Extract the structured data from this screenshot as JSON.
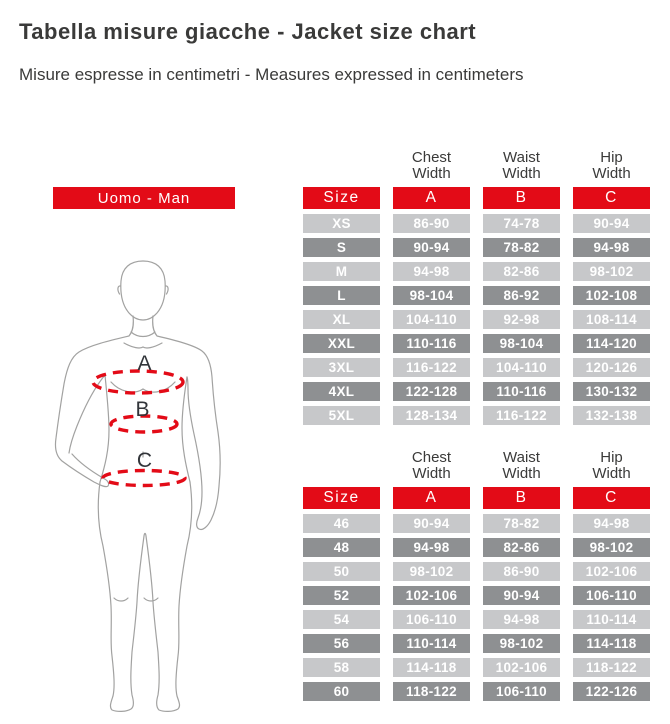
{
  "page": {
    "title": "Tabella misure giacche - Jacket size chart",
    "subtitle": "Misure espresse in centimetri - Measures expressed in centimeters"
  },
  "banner": {
    "label": "Uomo - Man"
  },
  "figure": {
    "labels": [
      "A",
      "B",
      "C"
    ]
  },
  "colors": {
    "accent_red": "#e30b17",
    "row_light": "#c7c8ca",
    "row_dark": "#8e9092",
    "text_dark": "#3a3a39",
    "figure_outline": "#a2a2a1"
  },
  "tables": [
    {
      "name": "international-sizes",
      "columns": [
        {
          "top": "Chest",
          "bottom": "Width"
        },
        {
          "top": "Waist",
          "bottom": "Width"
        },
        {
          "top": "Hip",
          "bottom": "Width"
        }
      ],
      "header": {
        "size": "Size",
        "a": "A",
        "b": "B",
        "c": "C"
      },
      "rows": [
        {
          "size": "XS",
          "a": "86-90",
          "b": "74-78",
          "c": "90-94"
        },
        {
          "size": "S",
          "a": "90-94",
          "b": "78-82",
          "c": "94-98"
        },
        {
          "size": "M",
          "a": "94-98",
          "b": "82-86",
          "c": "98-102"
        },
        {
          "size": "L",
          "a": "98-104",
          "b": "86-92",
          "c": "102-108"
        },
        {
          "size": "XL",
          "a": "104-110",
          "b": "92-98",
          "c": "108-114"
        },
        {
          "size": "XXL",
          "a": "110-116",
          "b": "98-104",
          "c": "114-120"
        },
        {
          "size": "3XL",
          "a": "116-122",
          "b": "104-110",
          "c": "120-126"
        },
        {
          "size": "4XL",
          "a": "122-128",
          "b": "110-116",
          "c": "130-132"
        },
        {
          "size": "5XL",
          "a": "128-134",
          "b": "116-122",
          "c": "132-138"
        }
      ]
    },
    {
      "name": "italian-sizes",
      "columns": [
        {
          "top": "Chest",
          "bottom": "Width"
        },
        {
          "top": "Waist",
          "bottom": "Width"
        },
        {
          "top": "Hip",
          "bottom": "Width"
        }
      ],
      "header": {
        "size": "Size",
        "a": "A",
        "b": "B",
        "c": "C"
      },
      "rows": [
        {
          "size": "46",
          "a": "90-94",
          "b": "78-82",
          "c": "94-98"
        },
        {
          "size": "48",
          "a": "94-98",
          "b": "82-86",
          "c": "98-102"
        },
        {
          "size": "50",
          "a": "98-102",
          "b": "86-90",
          "c": "102-106"
        },
        {
          "size": "52",
          "a": "102-106",
          "b": "90-94",
          "c": "106-110"
        },
        {
          "size": "54",
          "a": "106-110",
          "b": "94-98",
          "c": "110-114"
        },
        {
          "size": "56",
          "a": "110-114",
          "b": "98-102",
          "c": "114-118"
        },
        {
          "size": "58",
          "a": "114-118",
          "b": "102-106",
          "c": "118-122"
        },
        {
          "size": "60",
          "a": "118-122",
          "b": "106-110",
          "c": "122-126"
        }
      ]
    }
  ]
}
